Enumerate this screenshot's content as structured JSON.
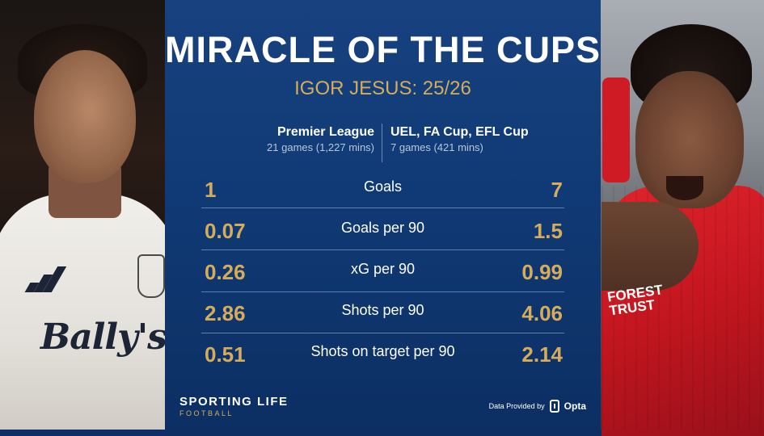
{
  "title": "MIRACLE OF THE CUPS",
  "subtitle": "IGOR JESUS: 25/26",
  "columns": {
    "left": {
      "heading": "Premier League",
      "subheading": "21 games (1,227 mins)"
    },
    "right": {
      "heading": "UEL, FA Cup, EFL Cup",
      "subheading": "7 games (421 mins)"
    }
  },
  "stats": [
    {
      "label": "Goals",
      "left": "1",
      "right": "7"
    },
    {
      "label": "Goals per 90",
      "left": "0.07",
      "right": "1.5"
    },
    {
      "label": "xG per 90",
      "left": "0.26",
      "right": "0.99"
    },
    {
      "label": "Shots per 90",
      "left": "2.86",
      "right": "4.06"
    },
    {
      "label": "Shots on target per 90",
      "left": "0.51",
      "right": "2.14"
    }
  ],
  "brand": {
    "name": "SPORTING LIFE",
    "tagline": "FOOTBALL"
  },
  "provider": {
    "prefix": "Data Provided by",
    "name": "Opta",
    "icon": "opta-logo-icon"
  },
  "player_left": {
    "sponsor": "Bally's"
  },
  "player_right": {
    "sponsor": "FOREST TRUST"
  },
  "colors": {
    "panel": "#103a75",
    "accent": "#d4ac5c",
    "text": "#ffffff"
  }
}
